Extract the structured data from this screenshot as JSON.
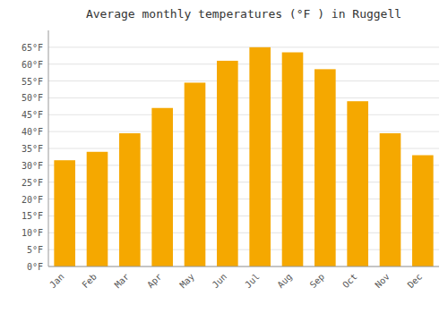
{
  "chart_data": {
    "type": "bar",
    "title": "Average monthly temperatures (°F ) in Ruggell",
    "categories": [
      "Jan",
      "Feb",
      "Mar",
      "Apr",
      "May",
      "Jun",
      "Jul",
      "Aug",
      "Sep",
      "Oct",
      "Nov",
      "Dec"
    ],
    "values": [
      31.5,
      34.0,
      39.5,
      47.0,
      54.5,
      61.0,
      65.0,
      63.5,
      58.5,
      49.0,
      39.5,
      33.0
    ],
    "color": "#F5A800",
    "ylim": [
      0,
      70
    ],
    "yticks": [
      {
        "value": 0,
        "label": "0°F"
      },
      {
        "value": 5,
        "label": "5°F"
      },
      {
        "value": 10,
        "label": "10°F"
      },
      {
        "value": 15,
        "label": "15°F"
      },
      {
        "value": 20,
        "label": "20°F"
      },
      {
        "value": 25,
        "label": "25°F"
      },
      {
        "value": 30,
        "label": "30°F"
      },
      {
        "value": 35,
        "label": "35°F"
      },
      {
        "value": 40,
        "label": "40°F"
      },
      {
        "value": 45,
        "label": "45°F"
      },
      {
        "value": 50,
        "label": "50°F"
      },
      {
        "value": 55,
        "label": "55°F"
      },
      {
        "value": 60,
        "label": "60°F"
      },
      {
        "value": 65,
        "label": "65°F"
      }
    ],
    "grid": true
  }
}
